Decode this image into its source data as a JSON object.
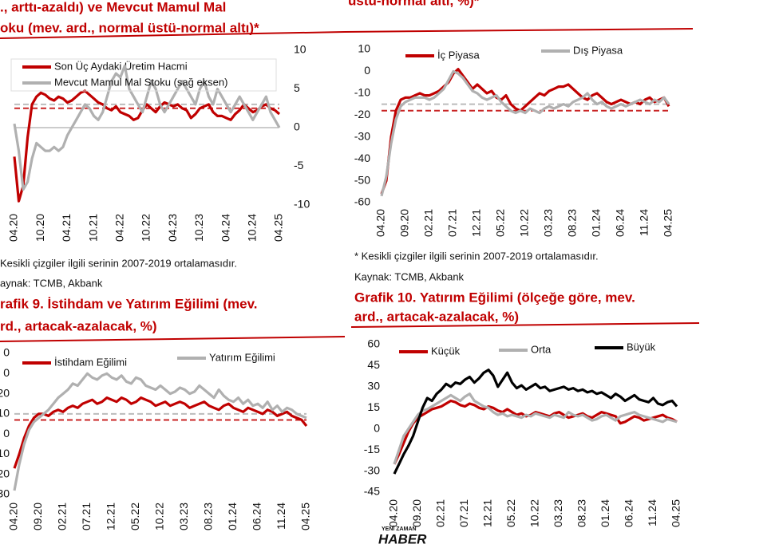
{
  "charts": [
    {
      "type": "line",
      "title": [
        "., arttı-azaldı) ve Mevcut Mamul Mal",
        "oku (mev. ard., normal üstü-normal altı)*"
      ],
      "categories": [
        "04.20",
        null,
        null,
        null,
        null,
        null,
        "10.20",
        null,
        null,
        null,
        null,
        null,
        "04.21",
        null,
        null,
        null,
        null,
        null,
        "10.21",
        null,
        null,
        null,
        null,
        null,
        "04.22",
        null,
        null,
        null,
        null,
        null,
        "10.22",
        null,
        null,
        null,
        null,
        null,
        "04.23",
        null,
        null,
        null,
        null,
        null,
        "10.23",
        null,
        null,
        null,
        null,
        null,
        "04.24",
        null,
        null,
        null,
        null,
        null,
        "10.24",
        null,
        null,
        null,
        null,
        null,
        "04.25"
      ],
      "ylim": [
        -40,
        40
      ],
      "y2lim": [
        -10,
        10
      ],
      "y2ticks": [
        10,
        5,
        0,
        -5,
        -10
      ],
      "series": [
        {
          "name": "Son Üç Aydaki Üretim Hacmi",
          "color": "#c00000",
          "average": 10,
          "values": [
            -15,
            -38,
            -30,
            -5,
            12,
            16,
            18,
            17,
            15,
            14,
            16,
            15,
            13,
            14,
            16,
            18,
            19,
            17,
            15,
            13,
            12,
            10,
            9,
            11,
            8,
            7,
            6,
            4,
            5,
            9,
            12,
            10,
            8,
            11,
            13,
            12,
            11,
            12,
            10,
            9,
            5,
            7,
            10,
            11,
            12,
            8,
            6,
            6,
            5,
            4,
            7,
            9,
            12,
            10,
            8,
            9,
            11,
            12,
            10,
            9,
            7
          ]
        },
        {
          "name": "Mevcut Mamul Mal Stoku (sağ eksen)",
          "color": "#b0b0b0",
          "axis": "y2",
          "average": 3,
          "values": [
            0.5,
            -3,
            -8,
            -7,
            -4,
            -2,
            -2.5,
            -3,
            -3,
            -2.5,
            -3,
            -2.5,
            -1,
            0,
            1,
            2,
            3,
            2.5,
            1.5,
            1,
            2,
            4,
            6,
            7,
            6.5,
            8,
            5,
            4,
            3,
            2,
            4,
            6,
            5,
            3,
            2,
            3,
            4,
            5,
            6,
            5,
            4,
            3,
            5,
            6,
            4,
            3,
            5,
            4,
            3,
            2,
            3,
            4,
            3,
            2,
            1,
            2,
            3,
            4,
            2,
            1,
            0
          ]
        }
      ],
      "notes": [
        "Kesikli çizgiler ilgili serinin 2007-2019 ortalamasıdır.",
        "aynak: TCMB, Akbank"
      ]
    },
    {
      "type": "line",
      "title": [
        "üstü-normal altı, %)*"
      ],
      "categories": [
        "04.20",
        null,
        null,
        null,
        null,
        "09.20",
        null,
        null,
        null,
        null,
        "02.21",
        null,
        null,
        null,
        null,
        "07.21",
        null,
        null,
        null,
        null,
        "12.21",
        null,
        null,
        null,
        null,
        "05.22",
        null,
        null,
        null,
        null,
        "10.22",
        null,
        null,
        null,
        null,
        "03.23",
        null,
        null,
        null,
        null,
        "08.23",
        null,
        null,
        null,
        null,
        "01.24",
        null,
        null,
        null,
        null,
        "06.24",
        null,
        null,
        null,
        null,
        "11.24",
        null,
        null,
        null,
        null,
        "04.25"
      ],
      "ylim": [
        -60,
        10
      ],
      "yticks": [
        10,
        0,
        -10,
        -20,
        -30,
        -40,
        -50,
        -60
      ],
      "series": [
        {
          "name": "İç Piyasa",
          "color": "#c00000",
          "average": -18,
          "values": [
            -56,
            -50,
            -30,
            -18,
            -13,
            -12,
            -12,
            -11,
            -10,
            -11,
            -11,
            -10,
            -9,
            -7,
            -5,
            -1,
            1,
            -2,
            -5,
            -8,
            -6,
            -8,
            -10,
            -9,
            -12,
            -13,
            -11,
            -15,
            -17,
            -18,
            -16,
            -14,
            -12,
            -10,
            -11,
            -9,
            -8,
            -7,
            -7,
            -6,
            -8,
            -10,
            -12,
            -13,
            -11,
            -10,
            -12,
            -14,
            -15,
            -14,
            -13,
            -14,
            -15,
            -14,
            -15,
            -13,
            -12,
            -14,
            -13,
            -12,
            -16
          ]
        },
        {
          "name": "Dış Piyasa",
          "color": "#b0b0b0",
          "average": -15,
          "values": [
            -57,
            -48,
            -33,
            -22,
            -16,
            -14,
            -13,
            -12,
            -12,
            -12,
            -13,
            -12,
            -10,
            -8,
            -4,
            0,
            -1,
            -3,
            -6,
            -9,
            -10,
            -12,
            -13,
            -12,
            -11,
            -14,
            -16,
            -18,
            -19,
            -18,
            -19,
            -17,
            -18,
            -19,
            -17,
            -16,
            -17,
            -16,
            -15,
            -16,
            -14,
            -13,
            -12,
            -10,
            -13,
            -15,
            -14,
            -16,
            -17,
            -16,
            -15,
            -16,
            -15,
            -14,
            -13,
            -14,
            -15,
            -13,
            -14,
            -12,
            -15
          ]
        }
      ],
      "notes": [
        "* Kesikli çizgiler ilgili serinin 2007-2019 ortalamasıdır.",
        "Kaynak: TCMB, Akbank"
      ]
    },
    {
      "type": "line",
      "title": [
        "rafik 9. İstihdam ve Yatırım Eğilimi (mev.",
        "rd., artacak-azalacak, %)"
      ],
      "categories": [
        "04.20",
        null,
        null,
        null,
        null,
        "09.20",
        null,
        null,
        null,
        null,
        "02.21",
        null,
        null,
        null,
        null,
        "07.21",
        null,
        null,
        null,
        null,
        "12.21",
        null,
        null,
        null,
        null,
        "05.22",
        null,
        null,
        null,
        null,
        "10.22",
        null,
        null,
        null,
        null,
        "03.23",
        null,
        null,
        null,
        null,
        "08.23",
        null,
        null,
        null,
        null,
        "01.24",
        null,
        null,
        null,
        null,
        "06.24",
        null,
        null,
        null,
        null,
        "11.24",
        null,
        null,
        null,
        null,
        "04.25"
      ],
      "ylim": [
        -30,
        40
      ],
      "yticks": [
        {
          "value": 40,
          "label": "0"
        },
        {
          "value": 30,
          "label": "0"
        },
        20,
        10,
        0,
        {
          "value": -10,
          "label": "10"
        },
        {
          "value": -20,
          "label": "20"
        },
        {
          "value": -30,
          "label": "30"
        }
      ],
      "series": [
        {
          "name": "İstihdam Eğilimi",
          "color": "#c00000",
          "average": 7,
          "values": [
            -17,
            -10,
            -2,
            4,
            8,
            10,
            10,
            9,
            11,
            12,
            11,
            13,
            14,
            13,
            15,
            16,
            17,
            15,
            16,
            18,
            17,
            16,
            18,
            17,
            15,
            16,
            18,
            17,
            16,
            14,
            15,
            16,
            14,
            15,
            16,
            15,
            13,
            14,
            15,
            16,
            14,
            13,
            12,
            14,
            15,
            13,
            12,
            11,
            13,
            12,
            11,
            10,
            12,
            11,
            9,
            10,
            11,
            9,
            8,
            7,
            4
          ]
        },
        {
          "name": "Yatırım Eğilimi",
          "color": "#b0b0b0",
          "average": 10,
          "values": [
            -28,
            -15,
            -5,
            2,
            6,
            8,
            10,
            12,
            15,
            18,
            20,
            22,
            25,
            24,
            27,
            30,
            28,
            27,
            29,
            30,
            28,
            27,
            29,
            26,
            25,
            28,
            27,
            24,
            23,
            22,
            24,
            22,
            20,
            21,
            23,
            22,
            20,
            21,
            24,
            22,
            20,
            18,
            22,
            19,
            17,
            16,
            18,
            15,
            17,
            14,
            15,
            13,
            16,
            12,
            14,
            11,
            13,
            12,
            10,
            9,
            8
          ]
        }
      ]
    },
    {
      "type": "line",
      "title": [
        "Grafik 10. Yatırım Eğilimi (ölçeğe göre, mev.",
        "ard., artacak-azalacak, %)"
      ],
      "categories": [
        "04.20",
        null,
        null,
        null,
        null,
        "09.20",
        null,
        null,
        null,
        null,
        "02.21",
        null,
        null,
        null,
        null,
        "07.21",
        null,
        null,
        null,
        null,
        "12.21",
        null,
        null,
        null,
        null,
        "05.22",
        null,
        null,
        null,
        null,
        "10.22",
        null,
        null,
        null,
        null,
        "03.23",
        null,
        null,
        null,
        null,
        "08.23",
        null,
        null,
        null,
        null,
        "01.24",
        null,
        null,
        null,
        null,
        "06.24",
        null,
        null,
        null,
        null,
        "11.24",
        null,
        null,
        null,
        null,
        "04.25"
      ],
      "ylim": [
        -45,
        60
      ],
      "yticks": [
        60,
        45,
        30,
        15,
        0,
        -15,
        -30,
        -45
      ],
      "series": [
        {
          "name": "Küçük",
          "color": "#c00000",
          "values": [
            -25,
            -18,
            -10,
            -2,
            4,
            8,
            10,
            12,
            14,
            15,
            16,
            18,
            20,
            19,
            17,
            16,
            18,
            17,
            15,
            14,
            16,
            15,
            13,
            12,
            14,
            12,
            10,
            11,
            9,
            10,
            12,
            11,
            10,
            9,
            11,
            12,
            10,
            8,
            9,
            10,
            11,
            9,
            8,
            10,
            12,
            11,
            10,
            9,
            4,
            5,
            7,
            9,
            8,
            6,
            7,
            8,
            9,
            10,
            8,
            7,
            5
          ]
        },
        {
          "name": "Orta",
          "color": "#b0b0b0",
          "values": [
            -25,
            -15,
            -5,
            0,
            5,
            10,
            13,
            14,
            16,
            18,
            20,
            22,
            24,
            22,
            20,
            23,
            25,
            20,
            18,
            16,
            15,
            12,
            10,
            11,
            9,
            10,
            9,
            8,
            10,
            9,
            11,
            10,
            9,
            8,
            10,
            9,
            8,
            12,
            10,
            9,
            10,
            8,
            6,
            7,
            9,
            10,
            8,
            6,
            9,
            10,
            11,
            12,
            10,
            9,
            8,
            7,
            6,
            5,
            7,
            6,
            5
          ]
        },
        {
          "name": "Büyük",
          "color": "#000000",
          "values": [
            -32,
            -25,
            -18,
            -12,
            -5,
            5,
            15,
            22,
            20,
            25,
            28,
            32,
            30,
            33,
            32,
            35,
            37,
            33,
            36,
            40,
            42,
            38,
            30,
            35,
            40,
            33,
            29,
            31,
            28,
            30,
            32,
            29,
            30,
            27,
            28,
            29,
            30,
            28,
            29,
            27,
            28,
            26,
            27,
            25,
            26,
            24,
            22,
            25,
            23,
            20,
            22,
            24,
            21,
            20,
            19,
            22,
            18,
            17,
            19,
            20,
            16
          ]
        }
      ]
    }
  ],
  "logo": {
    "small": "YENİ ZAMAN",
    "big": "HABER"
  }
}
